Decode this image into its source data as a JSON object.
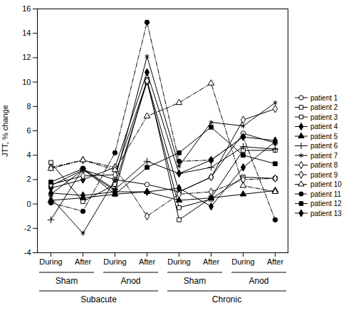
{
  "chart_data": {
    "type": "line",
    "y_label": "JTT, % change",
    "categories": [
      "During",
      "After",
      "During",
      "After",
      "During",
      "After",
      "During",
      "After"
    ],
    "conditions": [
      "Sham",
      "Sham",
      "Anod",
      "Anod",
      "Sham",
      "Sham",
      "Anod",
      "Anod"
    ],
    "phases": [
      "Subacute",
      "Subacute",
      "Subacute",
      "Subacute",
      "Chronic",
      "Chronic",
      "Chronic",
      "Chronic"
    ],
    "ylim": [
      -4,
      16
    ],
    "yticks": [
      -4,
      -2,
      0,
      2,
      4,
      6,
      8,
      10,
      12,
      14,
      16
    ],
    "series": [
      {
        "name": "patient 1",
        "color": "#000000",
        "marker": "circle-open",
        "line_style": "solid",
        "values": [
          0.8,
          2.8,
          2.0,
          1.6,
          1.0,
          2.2,
          5.8,
          5.0
        ]
      },
      {
        "name": "patient 2",
        "color": "#000000",
        "marker": "square-open",
        "line_style": "solid",
        "values": [
          3.4,
          0.2,
          1.6,
          10.0,
          -0.3,
          0.4,
          2.2,
          2.1
        ]
      },
      {
        "name": "patient 3",
        "color": "#000000",
        "marker": "square-open",
        "line_style": "solid",
        "values": [
          1.5,
          2.8,
          1.1,
          10.2,
          -1.3,
          0.5,
          4.4,
          4.4
        ]
      },
      {
        "name": "patient 4",
        "color": "#000000",
        "marker": "diamond-filled",
        "line_style": "solid",
        "values": [
          1.3,
          2.0,
          3.0,
          10.8,
          2.5,
          3.6,
          5.5,
          5.2
        ]
      },
      {
        "name": "patient 5",
        "color": "#000000",
        "marker": "triangle-filled",
        "line_style": "solid",
        "values": [
          0.3,
          0.5,
          0.8,
          1.0,
          0.3,
          0.5,
          0.8,
          1.1
        ]
      },
      {
        "name": "patient 6",
        "color": "#000000",
        "marker": "plus",
        "line_style": "solid",
        "values": [
          -1.3,
          2.9,
          1.2,
          3.5,
          2.5,
          3.0,
          4.7,
          4.5
        ]
      },
      {
        "name": "patient 7",
        "color": "#000000",
        "marker": "asterisk",
        "line_style": "solid",
        "values": [
          0.5,
          -2.4,
          2.0,
          12.1,
          3.1,
          6.7,
          6.4,
          8.3
        ]
      },
      {
        "name": "patient 8",
        "color": "#000000",
        "marker": "diamond-open",
        "line_style": "solid",
        "values": [
          1.6,
          2.3,
          2.4,
          10.1,
          1.0,
          2.2,
          6.9,
          7.8
        ]
      },
      {
        "name": "patient 9",
        "color": "#000000",
        "marker": "diamond-open",
        "line_style": "dashdot",
        "values": [
          3.0,
          3.6,
          3.0,
          -1.0,
          0.8,
          1.0,
          2.0,
          2.1
        ]
      },
      {
        "name": "patient 10",
        "color": "#000000",
        "marker": "triangle-open",
        "line_style": "dashdot",
        "values": [
          2.9,
          3.6,
          2.8,
          7.2,
          8.3,
          9.9,
          1.5,
          1.0
        ]
      },
      {
        "name": "patient 11",
        "color": "#000000",
        "marker": "circle-filled",
        "line_style": "dashdot",
        "values": [
          0.1,
          -0.6,
          4.2,
          14.9,
          3.5,
          3.6,
          5.5,
          -1.3
        ]
      },
      {
        "name": "patient 12",
        "color": "#000000",
        "marker": "square-filled",
        "line_style": "solid",
        "values": [
          1.8,
          2.9,
          0.8,
          3.0,
          4.2,
          6.3,
          4.0,
          3.3
        ]
      },
      {
        "name": "patient 13",
        "color": "#000000",
        "marker": "diamond-filled",
        "line_style": "solid",
        "values": [
          0.9,
          0.7,
          1.0,
          1.0,
          1.3,
          -0.2,
          3.0,
          5.1
        ]
      }
    ]
  }
}
